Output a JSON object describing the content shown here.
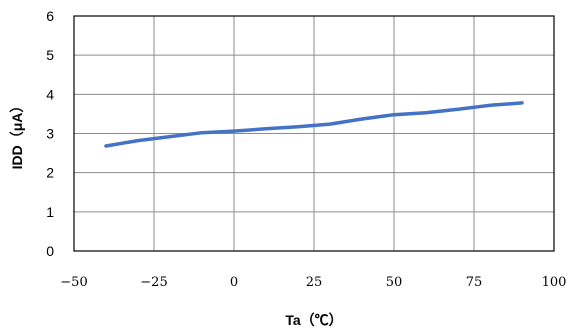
{
  "chart_data": {
    "type": "line",
    "title": "",
    "xlabel": "Ta（℃）",
    "ylabel": "IDD（μA）",
    "xlim": [
      -50,
      100
    ],
    "ylim": [
      0,
      6
    ],
    "xticks": [
      -50,
      -25,
      0,
      25,
      50,
      75,
      100
    ],
    "yticks": [
      0,
      1,
      2,
      3,
      4,
      5,
      6
    ],
    "xtick_labels": [
      "−50",
      "−25",
      "0",
      "25",
      "50",
      "75",
      "100"
    ],
    "ytick_labels": [
      "0",
      "1",
      "2",
      "3",
      "4",
      "5",
      "6"
    ],
    "grid": true,
    "legend": "none",
    "series": [
      {
        "color": "#4472C4",
        "x": [
          -40,
          -30,
          -20,
          -10,
          0,
          10,
          20,
          30,
          40,
          50,
          60,
          70,
          80,
          90
        ],
        "y": [
          2.68,
          2.82,
          2.92,
          3.02,
          3.06,
          3.12,
          3.17,
          3.24,
          3.37,
          3.48,
          3.53,
          3.62,
          3.72,
          3.78
        ]
      }
    ]
  }
}
